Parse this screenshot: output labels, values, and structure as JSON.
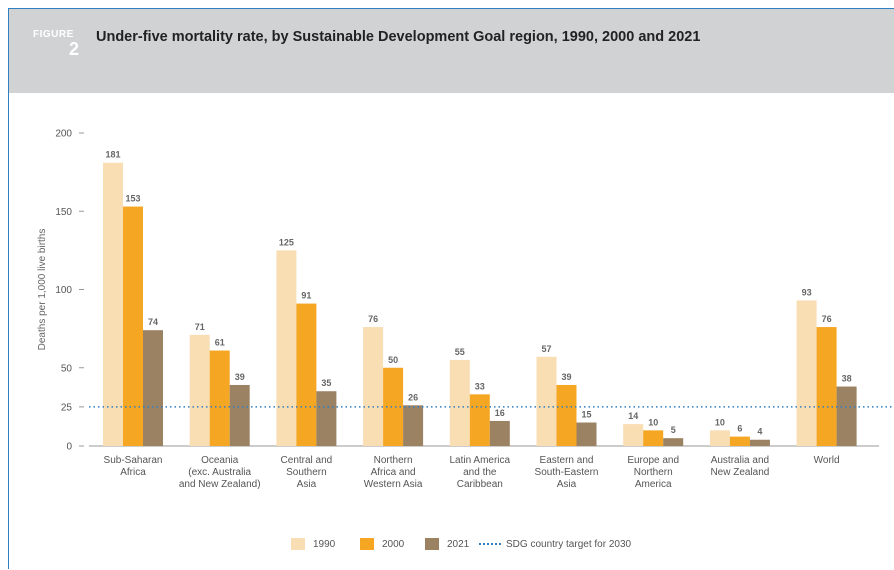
{
  "figure": {
    "label": "FIGURE",
    "number": "2",
    "title": "Under-five mortality rate, by Sustainable Development Goal region, 1990, 2000 and 2021"
  },
  "colors": {
    "s1990": "#f9ddb3",
    "s2000": "#f5a623",
    "s2021": "#9b8262",
    "target": "#2f7fc1"
  },
  "legend": {
    "s1990": "1990",
    "s2000": "2000",
    "s2021": "2021",
    "target": "SDG country target for 2030"
  },
  "chart_data": {
    "type": "bar",
    "title": "Under-five mortality rate, by Sustainable Development Goal region, 1990, 2000 and 2021",
    "xlabel": "",
    "ylabel": "Deaths per 1,000 live births",
    "ylim": [
      0,
      200
    ],
    "yticks": [
      0,
      25,
      50,
      100,
      150,
      200
    ],
    "grid": false,
    "legend_position": "bottom",
    "categories": [
      [
        "Sub-Saharan",
        "Africa"
      ],
      [
        "Oceania",
        "(exc. Australia",
        "and New Zealand)"
      ],
      [
        "Central and",
        "Southern",
        "Asia"
      ],
      [
        "Northern",
        "Africa and",
        "Western Asia"
      ],
      [
        "Latin America",
        "and the",
        "Caribbean"
      ],
      [
        "Eastern and",
        "South-Eastern",
        "Asia"
      ],
      [
        "Europe and",
        "Northern",
        "America"
      ],
      [
        "Australia and",
        "New Zealand"
      ],
      [
        "World"
      ]
    ],
    "series": [
      {
        "name": "1990",
        "values": [
          181,
          71,
          125,
          76,
          55,
          57,
          14,
          10,
          93
        ]
      },
      {
        "name": "2000",
        "values": [
          153,
          61,
          91,
          50,
          33,
          39,
          10,
          6,
          76
        ]
      },
      {
        "name": "2021",
        "values": [
          74,
          39,
          35,
          26,
          16,
          15,
          5,
          4,
          38
        ]
      }
    ],
    "reference_line": {
      "name": "SDG country target for 2030",
      "value": 25,
      "style": "dotted"
    }
  }
}
